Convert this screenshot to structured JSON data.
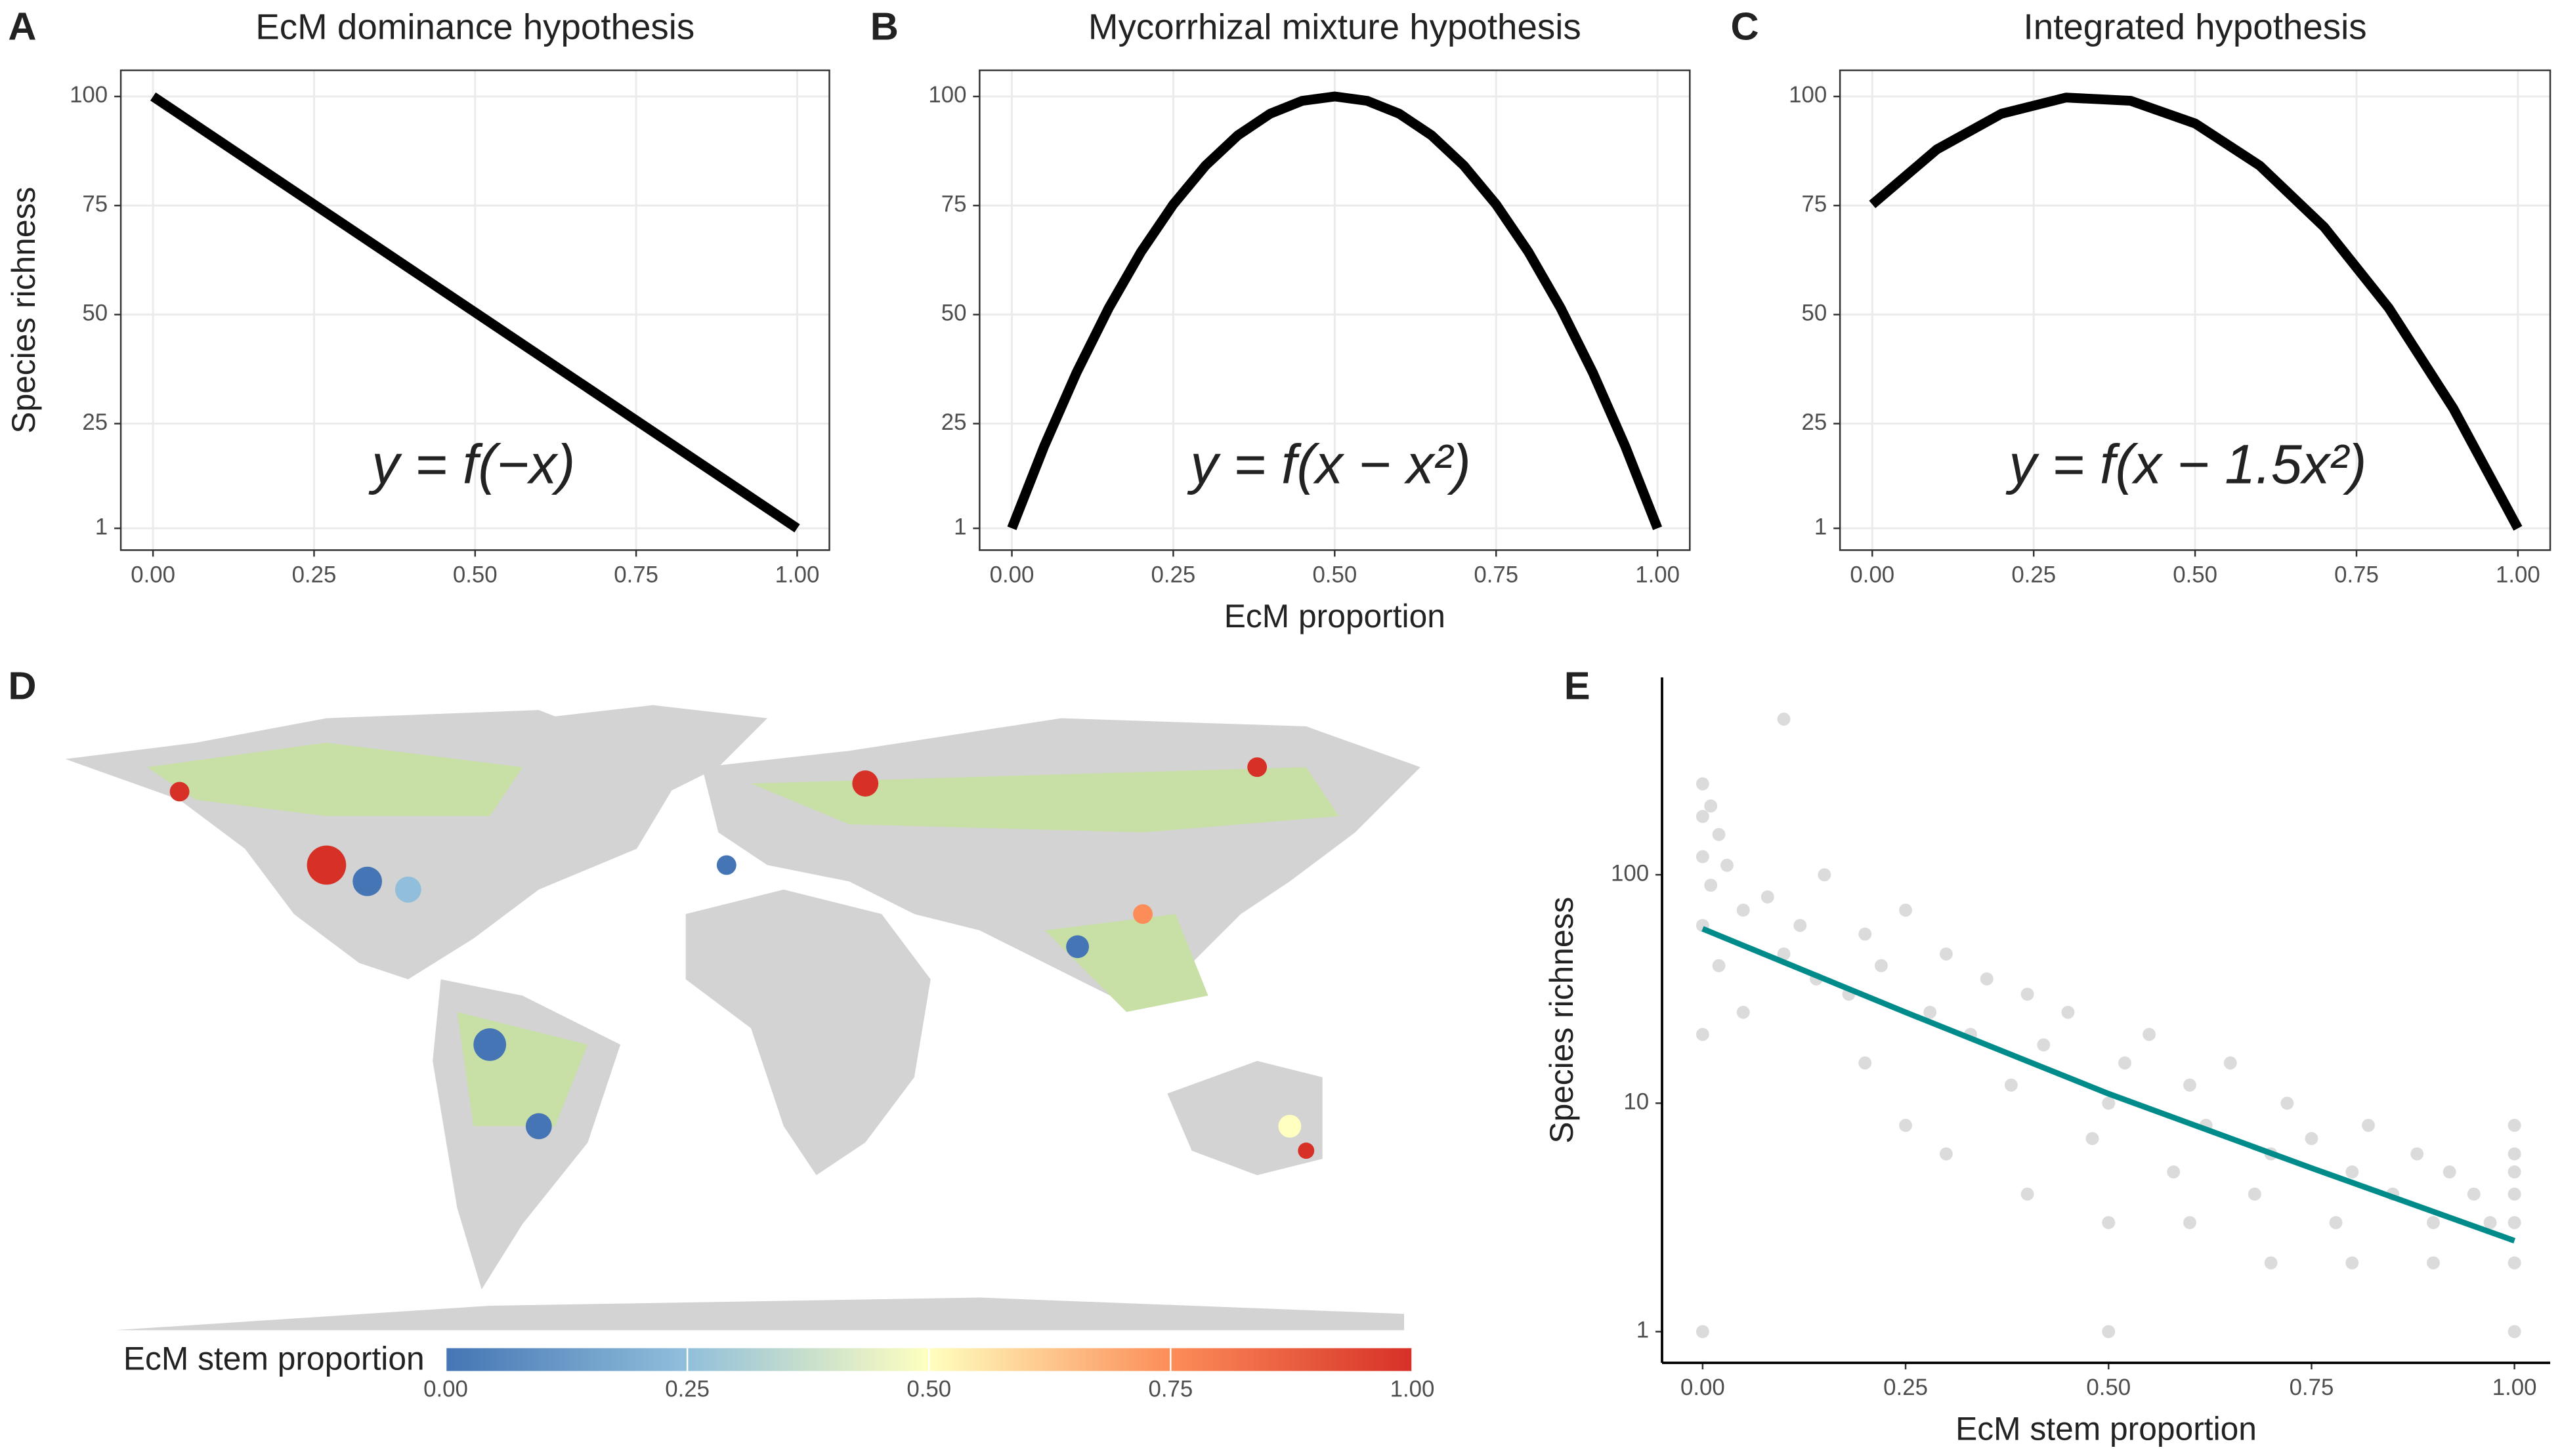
{
  "chart_data": [
    {
      "type": "line",
      "panel_label": "A",
      "title": "EcM dominance hypothesis",
      "ylabel": "Species richness",
      "annotation": "y = f(−x)",
      "x": [
        0,
        1
      ],
      "values": [
        100,
        1
      ],
      "color": "#000000",
      "xlim": [
        -0.05,
        1.05
      ],
      "ylim": [
        -4,
        106
      ],
      "xticks": [
        {
          "value": 0,
          "label": "0.00"
        },
        {
          "value": 0.25,
          "label": "0.25"
        },
        {
          "value": 0.5,
          "label": "0.50"
        },
        {
          "value": 0.75,
          "label": "0.75"
        },
        {
          "value": 1,
          "label": "1.00"
        }
      ],
      "yticks": [
        1,
        25,
        50,
        75,
        100
      ],
      "grid": true
    },
    {
      "type": "line",
      "panel_label": "B",
      "title": "Mycorrhizal mixture hypothesis",
      "xlabel": "EcM proportion",
      "annotation": "y = f(x − x²)",
      "x": [
        0,
        0.05,
        0.1,
        0.15,
        0.2,
        0.25,
        0.3,
        0.35,
        0.4,
        0.45,
        0.5,
        0.55,
        0.6,
        0.65,
        0.7,
        0.75,
        0.8,
        0.85,
        0.9,
        0.95,
        1
      ],
      "values": [
        1,
        19.81,
        36.64,
        51.49,
        64.36,
        75.25,
        84.16,
        91.09,
        96.04,
        99.01,
        100,
        99.01,
        96.04,
        91.09,
        84.16,
        75.25,
        64.36,
        51.49,
        36.64,
        19.81,
        1
      ],
      "color": "#000000",
      "xlim": [
        -0.05,
        1.05
      ],
      "ylim": [
        -4,
        106
      ],
      "xticks": [
        {
          "value": 0,
          "label": "0.00"
        },
        {
          "value": 0.25,
          "label": "0.25"
        },
        {
          "value": 0.5,
          "label": "0.50"
        },
        {
          "value": 0.75,
          "label": "0.75"
        },
        {
          "value": 1,
          "label": "1.00"
        }
      ],
      "yticks": [
        1,
        25,
        50,
        75,
        100
      ],
      "grid": true
    },
    {
      "type": "line",
      "panel_label": "C",
      "title": "Integrated hypothesis",
      "annotation": "y = f(x − 1.5x²)",
      "x": [
        0,
        0.1,
        0.2,
        0.3,
        0.4,
        0.5,
        0.6,
        0.7,
        0.8,
        0.9,
        1
      ],
      "values": [
        75.25,
        87.87,
        96.04,
        99.75,
        99.01,
        93.81,
        84.16,
        70.05,
        51.49,
        28.47,
        1
      ],
      "color": "#000000",
      "xlim": [
        -0.05,
        1.05
      ],
      "ylim": [
        -4,
        106
      ],
      "xticks": [
        {
          "value": 0,
          "label": "0.00"
        },
        {
          "value": 0.25,
          "label": "0.25"
        },
        {
          "value": 0.5,
          "label": "0.50"
        },
        {
          "value": 0.75,
          "label": "0.75"
        },
        {
          "value": 1,
          "label": "1.00"
        }
      ],
      "yticks": [
        1,
        25,
        50,
        75,
        100
      ],
      "grid": true
    },
    {
      "type": "map",
      "panel_label": "D",
      "legend_title": "EcM stem proportion",
      "colors": [
        "#4575b4",
        "#91bfdb",
        "#ffffbf",
        "#fc8d59",
        "#d73027"
      ],
      "clim": [
        0,
        1
      ],
      "xticks": [
        {
          "value": 0,
          "label": "0.00"
        },
        {
          "value": 0.25,
          "label": "0.25"
        },
        {
          "value": 0.5,
          "label": "0.50"
        },
        {
          "value": 0.75,
          "label": "0.75"
        },
        {
          "value": 1,
          "label": "1.00"
        }
      ]
    },
    {
      "type": "scatter",
      "panel_label": "E",
      "xlabel": "EcM stem proportion",
      "ylabel": "Species richness",
      "ylog": true,
      "color": "#bdbdbd",
      "x": [
        0,
        0,
        0,
        0,
        0,
        0,
        0.01,
        0.01,
        0.02,
        0.02,
        0.03,
        0.05,
        0.05,
        0.08,
        0.1,
        0.1,
        0.12,
        0.14,
        0.15,
        0.18,
        0.2,
        0.2,
        0.22,
        0.25,
        0.25,
        0.28,
        0.3,
        0.3,
        0.33,
        0.35,
        0.38,
        0.4,
        0.4,
        0.42,
        0.45,
        0.48,
        0.5,
        0.5,
        0.5,
        0.52,
        0.55,
        0.58,
        0.6,
        0.6,
        0.62,
        0.65,
        0.68,
        0.7,
        0.7,
        0.72,
        0.75,
        0.78,
        0.8,
        0.8,
        0.82,
        0.85,
        0.88,
        0.9,
        0.9,
        0.92,
        0.95,
        0.97,
        1,
        1,
        1,
        1,
        1,
        1,
        1
      ],
      "values": [
        250,
        180,
        120,
        60,
        20,
        1,
        200,
        90,
        150,
        40,
        110,
        70,
        25,
        80,
        480,
        45,
        60,
        35,
        100,
        30,
        55,
        15,
        40,
        70,
        8,
        25,
        45,
        6,
        20,
        35,
        12,
        30,
        4,
        18,
        25,
        7,
        1,
        10,
        3,
        15,
        20,
        5,
        12,
        3,
        8,
        15,
        4,
        6,
        2,
        10,
        7,
        3,
        5,
        2,
        8,
        4,
        6,
        3,
        2,
        5,
        4,
        3,
        1,
        2,
        3,
        4,
        5,
        6,
        8
      ],
      "fit": {
        "x": [
          0,
          0.25,
          0.5,
          0.75,
          1
        ],
        "values": [
          58,
          25,
          11,
          5.2,
          2.5
        ],
        "color": "#008b8b"
      },
      "xlim": [
        -0.05,
        1.044
      ],
      "ylim": [
        0.73,
        731
      ],
      "xticks": [
        {
          "value": 0,
          "label": "0.00"
        },
        {
          "value": 0.25,
          "label": "0.25"
        },
        {
          "value": 0.5,
          "label": "0.50"
        },
        {
          "value": 0.75,
          "label": "0.75"
        },
        {
          "value": 1,
          "label": "1.00"
        }
      ],
      "yticks": [
        1,
        10,
        100
      ],
      "grid": false
    }
  ]
}
